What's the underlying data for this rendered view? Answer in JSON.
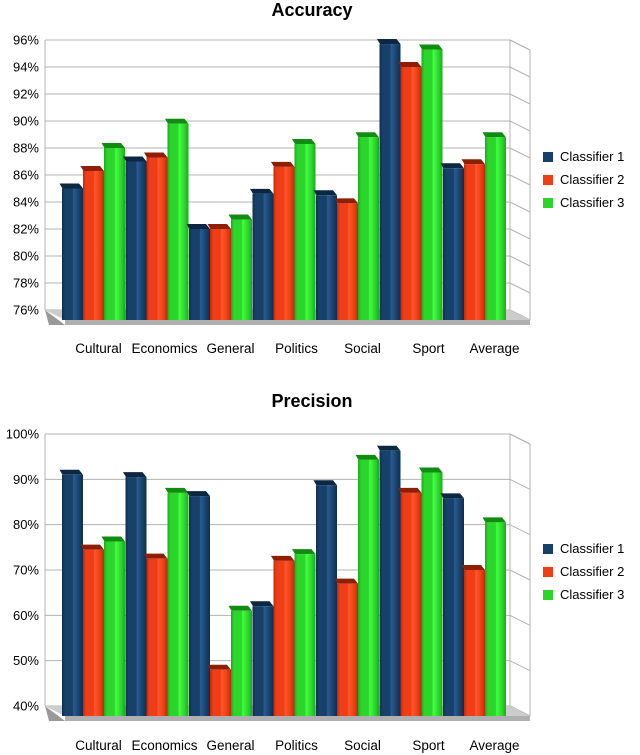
{
  "chart_data": [
    {
      "type": "bar",
      "title": "Accuracy",
      "categories": [
        "Cultural",
        "Economics",
        "General",
        "Politics",
        "Social",
        "Sport",
        "Average"
      ],
      "series": [
        {
          "name": "Classifier 1",
          "color": "#17406B",
          "color_dark": "#0E2E4F",
          "cap_color": "#0B2742",
          "values": [
            85.0,
            87.0,
            82.0,
            84.6,
            84.5,
            95.7,
            86.5
          ]
        },
        {
          "name": "Classifier 2",
          "color": "#EE3D17",
          "color_dark": "#BB2B0C",
          "cap_color": "#8E1F05",
          "values": [
            86.3,
            87.3,
            82.0,
            86.6,
            83.9,
            94.0,
            86.8
          ]
        },
        {
          "name": "Classifier 3",
          "color": "#2BD52B",
          "color_dark": "#1CA81C",
          "cap_color": "#108C10",
          "values": [
            88.0,
            89.8,
            82.7,
            88.3,
            88.8,
            95.3,
            88.8
          ]
        }
      ],
      "ylim": [
        76,
        96
      ],
      "ytick_step": 2,
      "ytick_labels": [
        "96%",
        "94%",
        "92%",
        "90%",
        "88%",
        "86%",
        "84%",
        "82%",
        "80%",
        "78%",
        "76%"
      ],
      "xlabel": "",
      "ylabel": "",
      "grid": true,
      "legend_position": "right"
    },
    {
      "type": "bar",
      "title": "Precision",
      "categories": [
        "Cultural",
        "Economics",
        "General",
        "Politics",
        "Social",
        "Sport",
        "Average"
      ],
      "series": [
        {
          "name": "Classifier 1",
          "color": "#17406B",
          "color_dark": "#0E2E4F",
          "cap_color": "#0B2742",
          "values": [
            91.0,
            90.5,
            86.3,
            62.0,
            88.7,
            96.3,
            85.8
          ]
        },
        {
          "name": "Classifier 2",
          "color": "#EE3D17",
          "color_dark": "#BB2B0C",
          "cap_color": "#8E1F05",
          "values": [
            74.5,
            72.5,
            48.0,
            72.0,
            67.0,
            87.0,
            70.0
          ]
        },
        {
          "name": "Classifier 3",
          "color": "#2BD52B",
          "color_dark": "#1CA81C",
          "cap_color": "#108C10",
          "values": [
            76.3,
            87.0,
            61.0,
            73.5,
            94.3,
            91.5,
            80.5
          ]
        }
      ],
      "ylim": [
        40,
        100
      ],
      "ytick_step": 10,
      "ytick_labels": [
        "100%",
        "90%",
        "80%",
        "70%",
        "60%",
        "50%",
        "40%"
      ],
      "xlabel": "",
      "ylabel": "",
      "grid": true,
      "legend_position": "right"
    }
  ],
  "style_colors": {
    "gridline": "#B3B3B3",
    "wall_line": "#B3B3B3",
    "floor_top": "#CCCCCC",
    "floor_front": "#B0B0B0",
    "floor_edge": "#999999",
    "text": "#000000"
  }
}
